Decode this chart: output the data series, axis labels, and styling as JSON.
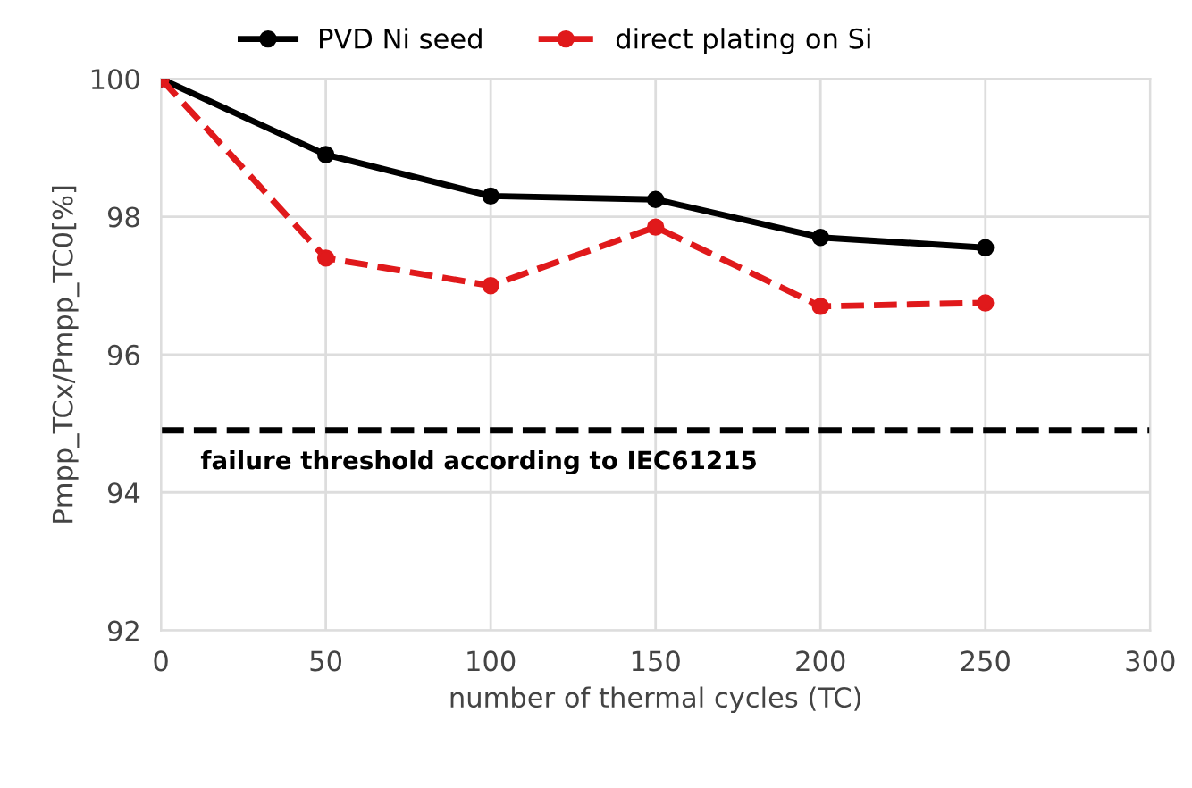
{
  "chart_data": {
    "type": "line",
    "xlabel": "number of thermal cycles (TC)",
    "ylabel": "Pmpp_TCx/Pmpp_TC0[%]",
    "x": [
      0,
      50,
      100,
      150,
      200,
      250
    ],
    "series": [
      {
        "name": "PVD Ni seed",
        "color": "#000000",
        "values": [
          100,
          98.9,
          98.3,
          98.25,
          97.7,
          97.55
        ],
        "line_style": "solid"
      },
      {
        "name": "direct plating on Si",
        "color": "#e0191b",
        "values": [
          100,
          97.4,
          97.0,
          97.85,
          96.7,
          96.75
        ],
        "line_style": "dashed"
      }
    ],
    "xlim": [
      0,
      300
    ],
    "xticks": [
      0,
      50,
      100,
      150,
      200,
      250,
      300
    ],
    "ylim": [
      92,
      100
    ],
    "yticks": [
      92,
      94,
      96,
      98,
      100
    ],
    "ref_lines": [
      {
        "axis": "y",
        "value": 94.9,
        "label": "failure threshold according to IEC61215",
        "color": "#000000",
        "line_style": "dashed"
      }
    ],
    "grid": true,
    "legend": "top",
    "marker": "circle"
  }
}
